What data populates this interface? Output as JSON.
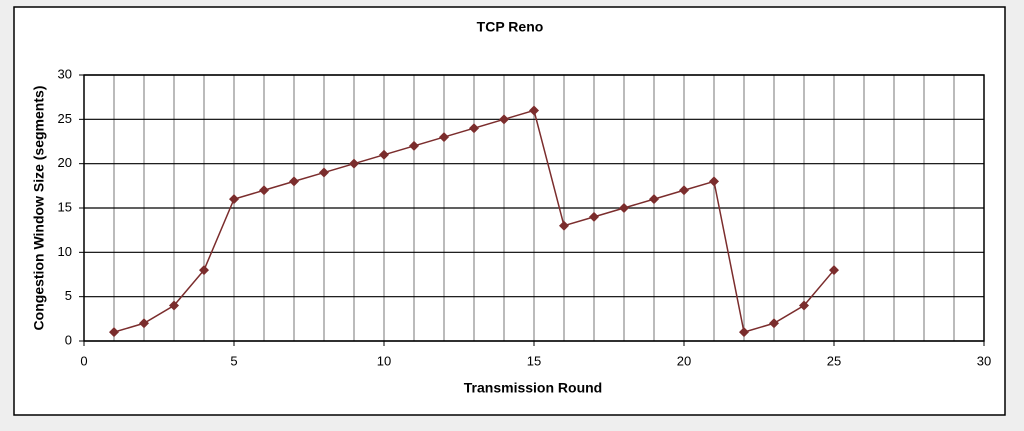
{
  "chart_data": {
    "type": "line",
    "title": "TCP Reno",
    "x_label": "Transmission Round",
    "y_label": "Congestion Window Size (segments)",
    "x": [
      1,
      2,
      3,
      4,
      5,
      6,
      7,
      8,
      9,
      10,
      11,
      12,
      13,
      14,
      15,
      16,
      17,
      18,
      19,
      20,
      21,
      22,
      23,
      24,
      25
    ],
    "series": [
      {
        "name": "TCP Reno",
        "color": "#7b2d2d",
        "values": [
          1,
          2,
          4,
          8,
          16,
          17,
          18,
          19,
          20,
          21,
          22,
          23,
          24,
          25,
          26,
          13,
          14,
          15,
          16,
          17,
          18,
          1,
          2,
          4,
          8
        ]
      }
    ],
    "xlim": [
      0,
      30
    ],
    "xticks": [
      0,
      5,
      10,
      15,
      20,
      25,
      30
    ],
    "xminorticks": [
      1,
      2,
      3,
      4,
      6,
      7,
      8,
      9,
      11,
      12,
      13,
      14,
      16,
      17,
      18,
      19,
      21,
      22,
      23,
      24,
      26,
      27,
      28,
      29
    ],
    "ylim": [
      0,
      30
    ],
    "yticks": [
      0,
      5,
      10,
      15,
      20,
      25,
      30
    ],
    "grid": true,
    "legend": false
  }
}
